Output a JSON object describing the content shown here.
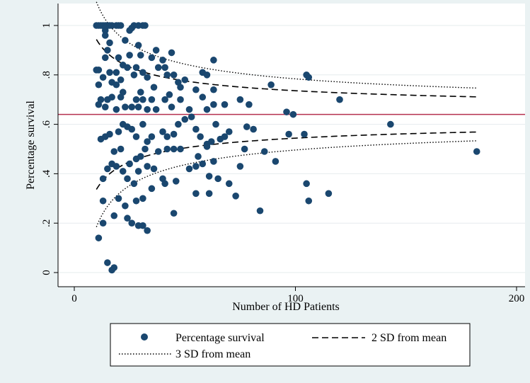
{
  "chart_data": {
    "type": "scatter",
    "xlabel": "Number of HD Patients",
    "ylabel": "Percentage survival",
    "xlim": [
      0,
      200
    ],
    "ylim": [
      0,
      1
    ],
    "x_ticks": [
      {
        "value": 0,
        "label": "0"
      },
      {
        "value": 100,
        "label": "100"
      },
      {
        "value": 200,
        "label": "200"
      }
    ],
    "y_ticks": [
      {
        "value": 0,
        "label": "0"
      },
      {
        "value": 0.2,
        "label": ".2"
      },
      {
        "value": 0.4,
        "label": ".4"
      },
      {
        "value": 0.6,
        "label": ".6"
      },
      {
        "value": 0.8,
        "label": ".8"
      },
      {
        "value": 1,
        "label": "1"
      }
    ],
    "grid": "horizontal",
    "legend_position": "bottom",
    "colors": {
      "points": "#1a476f",
      "mean_line": "#b5304f",
      "limits": "#000000"
    },
    "mean": 0.64,
    "series": [
      {
        "name": "Percentage survival",
        "points": [
          [
            10,
            1
          ],
          [
            11,
            1
          ],
          [
            12,
            1
          ],
          [
            13,
            1
          ],
          [
            14,
            1
          ],
          [
            15,
            1
          ],
          [
            16,
            1
          ],
          [
            17,
            1
          ],
          [
            19,
            1
          ],
          [
            20,
            1
          ],
          [
            21,
            1
          ],
          [
            27,
            1
          ],
          [
            29,
            1
          ],
          [
            31,
            1
          ],
          [
            32,
            1
          ],
          [
            14,
            0.99
          ],
          [
            14,
            0.98
          ],
          [
            14,
            0.96
          ],
          [
            25,
            0.98
          ],
          [
            26,
            0.99
          ],
          [
            23,
            0.94
          ],
          [
            16,
            0.93
          ],
          [
            29,
            0.92
          ],
          [
            15,
            0.9
          ],
          [
            37,
            0.9
          ],
          [
            44,
            0.89
          ],
          [
            14,
            0.87
          ],
          [
            20,
            0.87
          ],
          [
            25,
            0.88
          ],
          [
            30,
            0.88
          ],
          [
            35,
            0.87
          ],
          [
            40,
            0.86
          ],
          [
            63,
            0.86
          ],
          [
            22,
            0.84
          ],
          [
            24,
            0.83
          ],
          [
            28,
            0.83
          ],
          [
            38,
            0.83
          ],
          [
            41,
            0.83
          ],
          [
            10,
            0.82
          ],
          [
            11,
            0.82
          ],
          [
            16,
            0.81
          ],
          [
            19,
            0.81
          ],
          [
            27,
            0.8
          ],
          [
            31,
            0.81
          ],
          [
            42,
            0.8
          ],
          [
            45,
            0.8
          ],
          [
            58,
            0.81
          ],
          [
            60,
            0.8
          ],
          [
            105,
            0.8
          ],
          [
            106,
            0.79
          ],
          [
            13,
            0.79
          ],
          [
            17,
            0.77
          ],
          [
            21,
            0.78
          ],
          [
            33,
            0.79
          ],
          [
            47,
            0.77
          ],
          [
            50,
            0.78
          ],
          [
            11,
            0.76
          ],
          [
            19,
            0.76
          ],
          [
            36,
            0.75
          ],
          [
            48,
            0.75
          ],
          [
            55,
            0.74
          ],
          [
            63,
            0.74
          ],
          [
            89,
            0.76
          ],
          [
            22,
            0.73
          ],
          [
            30,
            0.73
          ],
          [
            43,
            0.72
          ],
          [
            12,
            0.7
          ],
          [
            15,
            0.7
          ],
          [
            17,
            0.71
          ],
          [
            21,
            0.71
          ],
          [
            28,
            0.7
          ],
          [
            31,
            0.7
          ],
          [
            35,
            0.7
          ],
          [
            41,
            0.7
          ],
          [
            48,
            0.7
          ],
          [
            58,
            0.71
          ],
          [
            75,
            0.7
          ],
          [
            120,
            0.7
          ],
          [
            11,
            0.68
          ],
          [
            14,
            0.67
          ],
          [
            19,
            0.66
          ],
          [
            23,
            0.67
          ],
          [
            26,
            0.67
          ],
          [
            29,
            0.67
          ],
          [
            33,
            0.66
          ],
          [
            37,
            0.66
          ],
          [
            44,
            0.67
          ],
          [
            52,
            0.66
          ],
          [
            60,
            0.66
          ],
          [
            63,
            0.68
          ],
          [
            68,
            0.68
          ],
          [
            79,
            0.68
          ],
          [
            96,
            0.65
          ],
          [
            99,
            0.64
          ],
          [
            12,
            0.54
          ],
          [
            16,
            0.56
          ],
          [
            20,
            0.57
          ],
          [
            22,
            0.6
          ],
          [
            24,
            0.59
          ],
          [
            26,
            0.58
          ],
          [
            28,
            0.55
          ],
          [
            31,
            0.6
          ],
          [
            33,
            0.53
          ],
          [
            35,
            0.55
          ],
          [
            40,
            0.57
          ],
          [
            42,
            0.55
          ],
          [
            45,
            0.56
          ],
          [
            47,
            0.6
          ],
          [
            50,
            0.62
          ],
          [
            53,
            0.63
          ],
          [
            55,
            0.58
          ],
          [
            57,
            0.55
          ],
          [
            60,
            0.52
          ],
          [
            62,
            0.53
          ],
          [
            64,
            0.6
          ],
          [
            66,
            0.54
          ],
          [
            68,
            0.55
          ],
          [
            70,
            0.57
          ],
          [
            78,
            0.59
          ],
          [
            81,
            0.58
          ],
          [
            97,
            0.56
          ],
          [
            104,
            0.56
          ],
          [
            143,
            0.6
          ],
          [
            14,
            0.55
          ],
          [
            18,
            0.49
          ],
          [
            21,
            0.5
          ],
          [
            25,
            0.44
          ],
          [
            28,
            0.46
          ],
          [
            30,
            0.47
          ],
          [
            32,
            0.5
          ],
          [
            38,
            0.49
          ],
          [
            42,
            0.5
          ],
          [
            45,
            0.5
          ],
          [
            48,
            0.5
          ],
          [
            56,
            0.47
          ],
          [
            60,
            0.51
          ],
          [
            63,
            0.45
          ],
          [
            77,
            0.5
          ],
          [
            86,
            0.49
          ],
          [
            91,
            0.45
          ],
          [
            182,
            0.49
          ],
          [
            13,
            0.38
          ],
          [
            15,
            0.42
          ],
          [
            17,
            0.44
          ],
          [
            19,
            0.43
          ],
          [
            22,
            0.41
          ],
          [
            24,
            0.38
          ],
          [
            27,
            0.36
          ],
          [
            29,
            0.41
          ],
          [
            33,
            0.43
          ],
          [
            36,
            0.42
          ],
          [
            40,
            0.38
          ],
          [
            46,
            0.37
          ],
          [
            52,
            0.42
          ],
          [
            55,
            0.43
          ],
          [
            58,
            0.44
          ],
          [
            61,
            0.39
          ],
          [
            65,
            0.38
          ],
          [
            70,
            0.36
          ],
          [
            75,
            0.43
          ],
          [
            105,
            0.36
          ],
          [
            13,
            0.29
          ],
          [
            20,
            0.3
          ],
          [
            23,
            0.27
          ],
          [
            28,
            0.29
          ],
          [
            31,
            0.3
          ],
          [
            35,
            0.34
          ],
          [
            41,
            0.36
          ],
          [
            45,
            0.24
          ],
          [
            55,
            0.32
          ],
          [
            61,
            0.32
          ],
          [
            73,
            0.31
          ],
          [
            84,
            0.25
          ],
          [
            106,
            0.29
          ],
          [
            115,
            0.32
          ],
          [
            13,
            0.2
          ],
          [
            18,
            0.23
          ],
          [
            24,
            0.22
          ],
          [
            26,
            0.2
          ],
          [
            29,
            0.19
          ],
          [
            31,
            0.19
          ],
          [
            33,
            0.17
          ],
          [
            11,
            0.14
          ],
          [
            15,
            0.04
          ],
          [
            17,
            0.01
          ],
          [
            18,
            0.02
          ]
        ]
      },
      {
        "name": "2 SD from mean",
        "curve": "control_limit",
        "k": 2
      },
      {
        "name": "3 SD from mean",
        "curve": "control_limit",
        "k": 3
      }
    ],
    "limit_x_range": [
      10,
      182
    ]
  },
  "legend": {
    "items": [
      {
        "label": "Percentage survival",
        "symbol": "dot"
      },
      {
        "label": "2 SD from mean",
        "symbol": "dash"
      },
      {
        "label": "3 SD from mean",
        "symbol": "dot-line"
      }
    ]
  }
}
